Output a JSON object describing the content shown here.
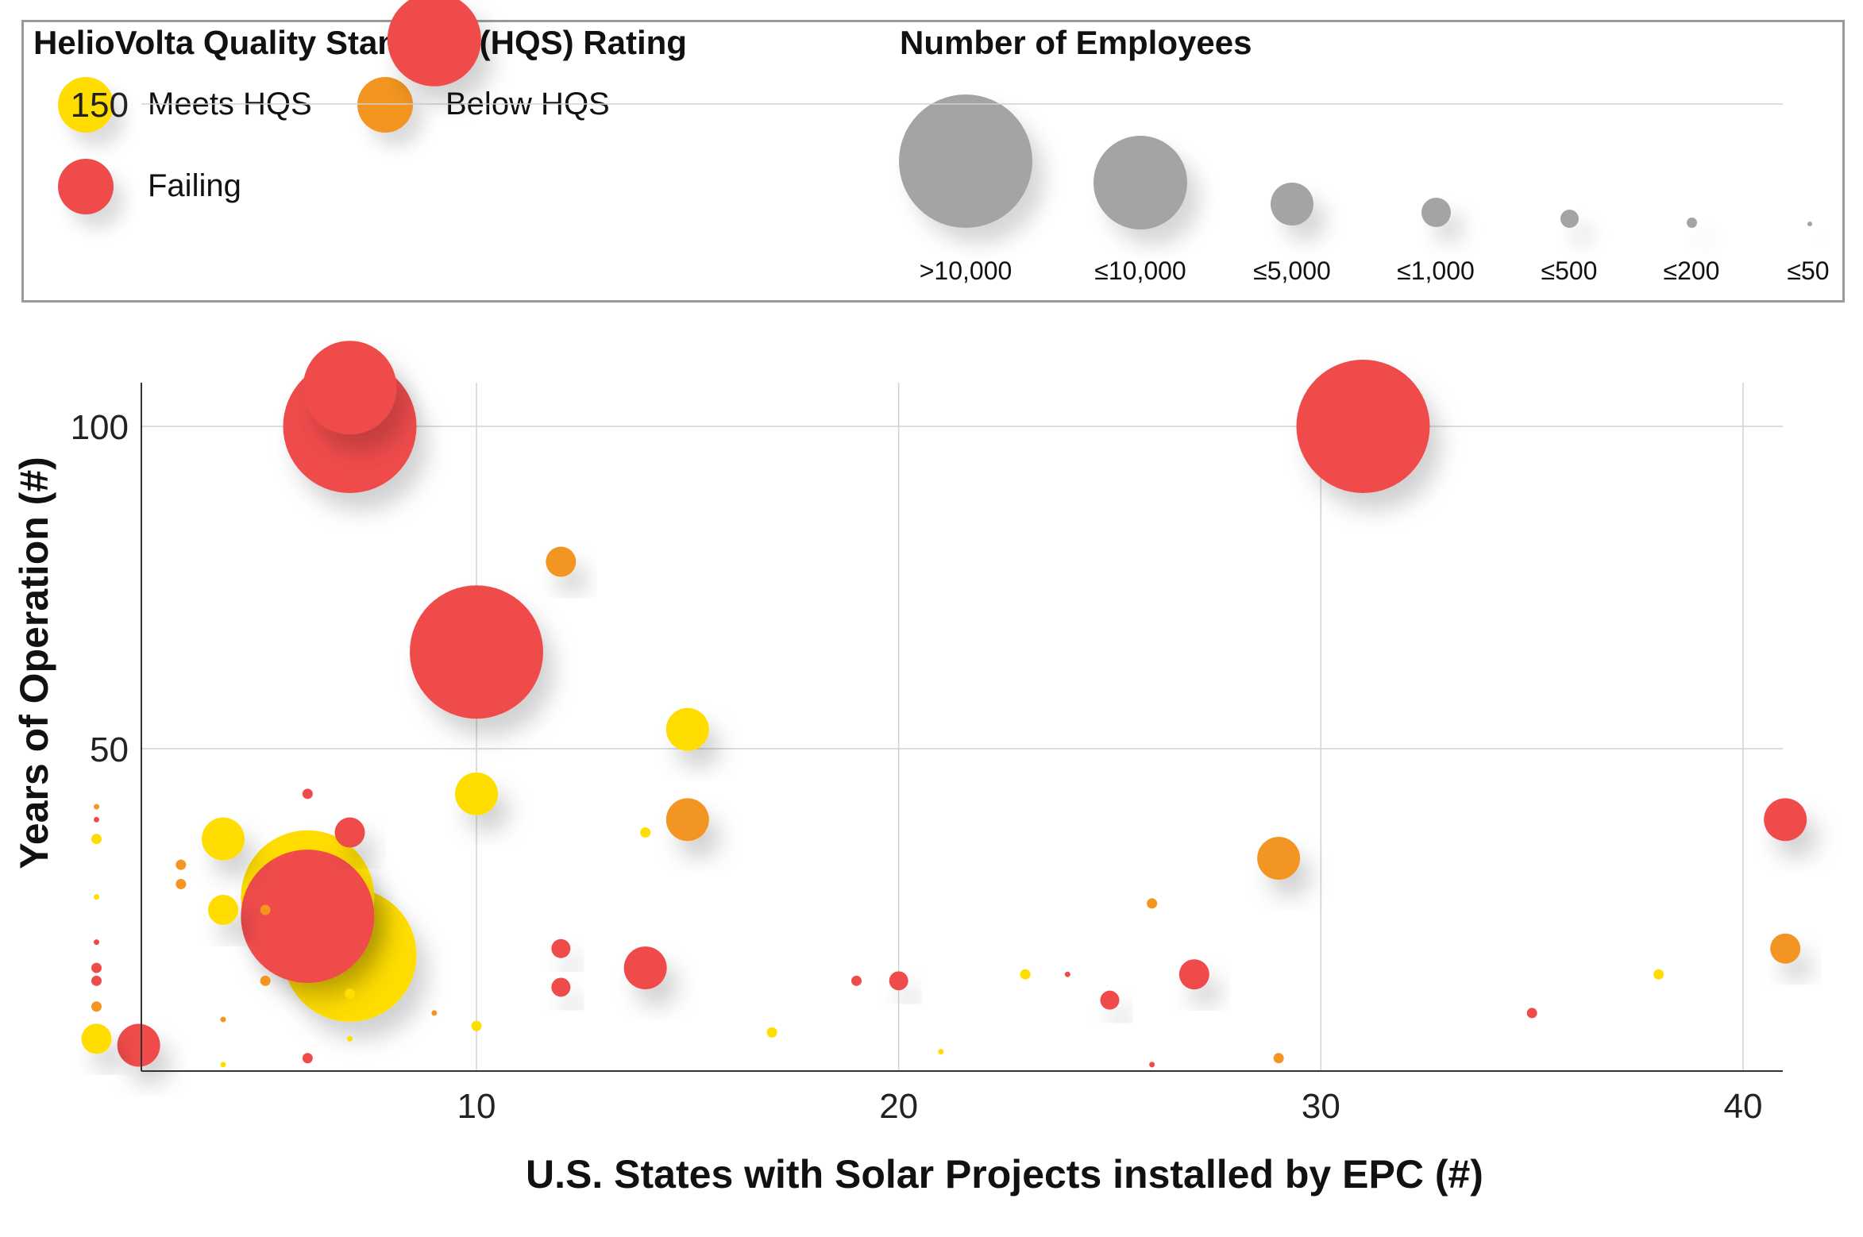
{
  "legend": {
    "hqs_title": "HelioVolta Quality Standard (HQS) Rating",
    "hqs_items": [
      {
        "label": "Meets HQS",
        "color": "#FFDD00"
      },
      {
        "label": "Below HQS",
        "color": "#F39520"
      },
      {
        "label": "Failing",
        "color": "#EF4B4B"
      }
    ],
    "employees_title": "Number of Employees",
    "employee_sizes": [
      ">10,000",
      "≤10,000",
      "≤5,000",
      "≤1,000",
      "≤500",
      "≤200",
      "≤50"
    ],
    "employee_color": "#A4A4A4"
  },
  "chart_data": {
    "type": "scatter",
    "subtype": "bubble",
    "xlabel": "U.S. States with Solar Projects installed by EPC (#)",
    "ylabel": "Years of Operation (#)",
    "xlim": [
      0,
      41
    ],
    "ylim": [
      0,
      160
    ],
    "xticks": [
      10,
      20,
      30,
      40
    ],
    "yticks": [
      50,
      100,
      150
    ],
    "grid": true,
    "size_categories": [
      ">10,000",
      "≤10,000",
      "≤5,000",
      "≤1,000",
      "≤500",
      "≤200",
      "≤50"
    ],
    "series": [
      {
        "name": "Meets HQS",
        "color": "#FFDD00",
        "points": [
          {
            "x": 7,
            "y": 18,
            "size": ">10,000"
          },
          {
            "x": 6,
            "y": 27,
            "size": ">10,000"
          },
          {
            "x": 15,
            "y": 53,
            "size": "≤5,000"
          },
          {
            "x": 10,
            "y": 43,
            "size": "≤5,000"
          },
          {
            "x": 4,
            "y": 36,
            "size": "≤5,000"
          },
          {
            "x": 4,
            "y": 25,
            "size": "≤1,000"
          },
          {
            "x": 1,
            "y": 5,
            "size": "≤1,000"
          },
          {
            "x": 14,
            "y": 37,
            "size": "≤200"
          },
          {
            "x": 1,
            "y": 36,
            "size": "≤200"
          },
          {
            "x": 23,
            "y": 15,
            "size": "≤200"
          },
          {
            "x": 38,
            "y": 15,
            "size": "≤200"
          },
          {
            "x": 17,
            "y": 6,
            "size": "≤200"
          },
          {
            "x": 10,
            "y": 7,
            "size": "≤200"
          },
          {
            "x": 7,
            "y": 12,
            "size": "≤200"
          },
          {
            "x": 1,
            "y": 27,
            "size": "≤50"
          },
          {
            "x": 21,
            "y": 3,
            "size": "≤50"
          },
          {
            "x": 4,
            "y": 1,
            "size": "≤50"
          },
          {
            "x": 7,
            "y": 5,
            "size": "≤50"
          }
        ]
      },
      {
        "name": "Below HQS",
        "color": "#F39520",
        "points": [
          {
            "x": 12,
            "y": 79,
            "size": "≤1,000"
          },
          {
            "x": 15,
            "y": 39,
            "size": "≤5,000"
          },
          {
            "x": 29,
            "y": 33,
            "size": "≤5,000"
          },
          {
            "x": 41,
            "y": 19,
            "size": "≤1,000"
          },
          {
            "x": 26,
            "y": 26,
            "size": "≤200"
          },
          {
            "x": 29,
            "y": 2,
            "size": "≤200"
          },
          {
            "x": 3,
            "y": 32,
            "size": "≤200"
          },
          {
            "x": 3,
            "y": 29,
            "size": "≤200"
          },
          {
            "x": 5,
            "y": 25,
            "size": "≤200"
          },
          {
            "x": 5,
            "y": 14,
            "size": "≤200"
          },
          {
            "x": 1,
            "y": 10,
            "size": "≤200"
          },
          {
            "x": 1,
            "y": 41,
            "size": "≤50"
          },
          {
            "x": 4,
            "y": 8,
            "size": "≤50"
          },
          {
            "x": 9,
            "y": 9,
            "size": "≤50"
          }
        ]
      },
      {
        "name": "Failing",
        "color": "#EF4B4B",
        "points": [
          {
            "x": 9,
            "y": 160,
            "size": "≤10,000"
          },
          {
            "x": 7,
            "y": 100,
            "size": ">10,000"
          },
          {
            "x": 7,
            "y": 106,
            "size": "≤10,000"
          },
          {
            "x": 10,
            "y": 65,
            "size": ">10,000"
          },
          {
            "x": 31,
            "y": 100,
            "size": ">10,000"
          },
          {
            "x": 6,
            "y": 24,
            "size": ">10,000"
          },
          {
            "x": 41,
            "y": 39,
            "size": "≤5,000"
          },
          {
            "x": 14,
            "y": 16,
            "size": "≤5,000"
          },
          {
            "x": 7,
            "y": 37,
            "size": "≤1,000"
          },
          {
            "x": 27,
            "y": 15,
            "size": "≤1,000"
          },
          {
            "x": 2,
            "y": 4,
            "size": "≤5,000"
          },
          {
            "x": 12,
            "y": 19,
            "size": "≤500"
          },
          {
            "x": 12,
            "y": 13,
            "size": "≤500"
          },
          {
            "x": 20,
            "y": 14,
            "size": "≤500"
          },
          {
            "x": 25,
            "y": 11,
            "size": "≤500"
          },
          {
            "x": 19,
            "y": 14,
            "size": "≤200"
          },
          {
            "x": 35,
            "y": 9,
            "size": "≤200"
          },
          {
            "x": 6,
            "y": 43,
            "size": "≤200"
          },
          {
            "x": 6,
            "y": 2,
            "size": "≤200"
          },
          {
            "x": 1,
            "y": 16,
            "size": "≤200"
          },
          {
            "x": 1,
            "y": 14,
            "size": "≤200"
          },
          {
            "x": 1,
            "y": 39,
            "size": "≤50"
          },
          {
            "x": 1,
            "y": 20,
            "size": "≤50"
          },
          {
            "x": 24,
            "y": 15,
            "size": "≤50"
          },
          {
            "x": 26,
            "y": 1,
            "size": "≤50"
          }
        ]
      }
    ]
  }
}
